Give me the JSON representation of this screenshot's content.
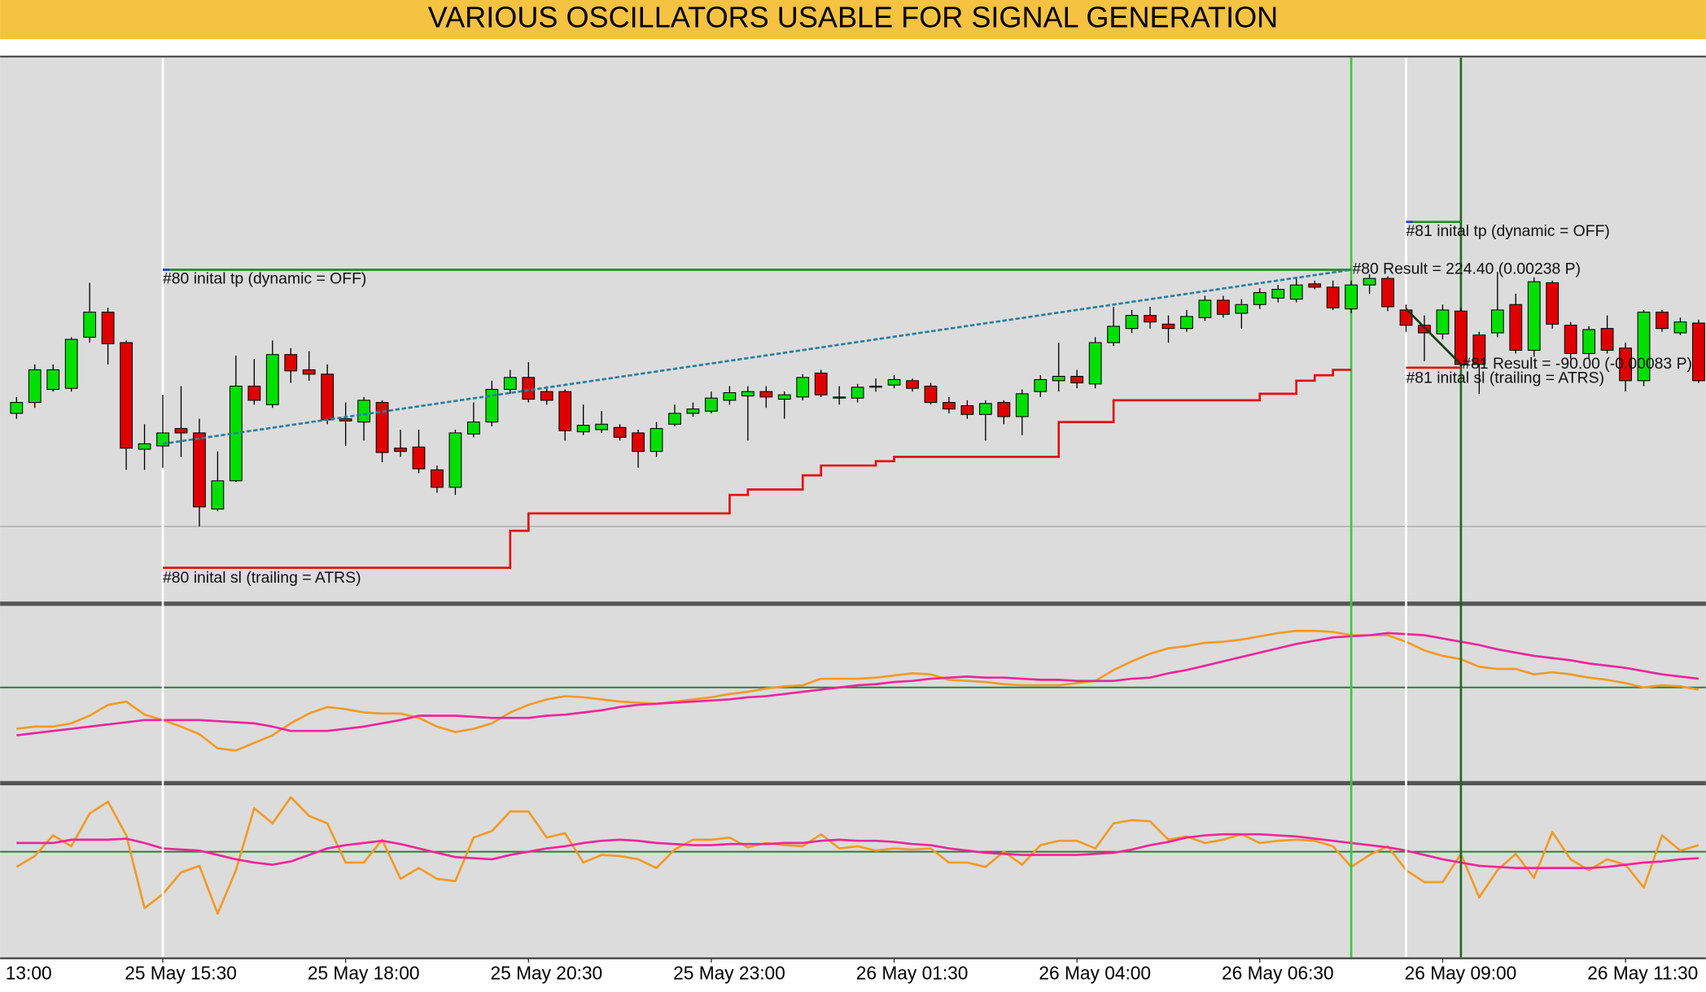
{
  "chart_data": {
    "type": "candlestick",
    "title": "VARIOUS OSCILLATORS USABLE FOR SIGNAL GENERATION",
    "xlim": [
      -0.9,
      92.4
    ],
    "xticks": [
      {
        "value": -2,
        "label": "13:00"
      },
      {
        "value": 8,
        "label": "25 May 15:30"
      },
      {
        "value": 18,
        "label": "25 May 18:00"
      },
      {
        "value": 28,
        "label": "25 May 20:30"
      },
      {
        "value": 38,
        "label": "25 May 23:00"
      },
      {
        "value": 48,
        "label": "26 May 01:30"
      },
      {
        "value": 58,
        "label": "26 May 04:00"
      },
      {
        "value": 68,
        "label": "26 May 06:30"
      },
      {
        "value": 78,
        "label": "26 May 09:00"
      },
      {
        "value": 88,
        "label": "26 May 11:30"
      }
    ],
    "ylim": [
      7,
      507
    ],
    "up_color": "#00e000",
    "down_color": "#e00000",
    "hlines": [
      76
    ],
    "open": [
      180,
      190,
      202,
      203,
      250,
      273,
      245,
      147,
      150,
      166,
      162,
      92,
      118,
      205,
      188,
      234,
      220,
      216,
      175,
      172,
      190,
      148,
      149,
      128,
      112,
      161,
      172,
      202,
      213,
      200,
      200,
      163,
      165,
      167,
      162,
      145,
      170,
      180,
      182,
      192,
      196,
      200,
      193,
      195,
      217,
      195,
      194,
      204,
      206,
      210,
      205,
      190,
      187,
      179,
      190,
      177,
      200,
      210,
      214,
      207,
      245,
      258,
      270,
      262,
      258,
      268,
      284,
      272,
      280,
      286,
      285,
      299,
      296,
      276,
      298,
      304,
      275,
      261,
      253,
      274,
      252,
      254,
      280,
      238,
      300,
      261,
      235,
      258,
      240,
      210,
      273,
      254,
      263
    ],
    "high": [
      195,
      225,
      225,
      250,
      300,
      277,
      247,
      170,
      197,
      205,
      175,
      145,
      233,
      230,
      247,
      240,
      237,
      225,
      190,
      195,
      192,
      165,
      165,
      132,
      165,
      190,
      210,
      220,
      227,
      205,
      202,
      188,
      182,
      170,
      165,
      172,
      188,
      190,
      200,
      205,
      205,
      205,
      200,
      216,
      220,
      205,
      207,
      212,
      215,
      212,
      208,
      195,
      192,
      192,
      192,
      202,
      215,
      245,
      220,
      250,
      278,
      275,
      278,
      270,
      275,
      288,
      288,
      285,
      295,
      298,
      305,
      302,
      302,
      302,
      308,
      306,
      280,
      270,
      280,
      277,
      255,
      310,
      290,
      305,
      302,
      264,
      260,
      270,
      245,
      275,
      275,
      268,
      266
    ],
    "low": [
      175,
      185,
      200,
      200,
      245,
      225,
      128,
      128,
      130,
      140,
      76,
      90,
      117,
      188,
      185,
      208,
      210,
      170,
      150,
      155,
      135,
      140,
      125,
      107,
      105,
      158,
      168,
      198,
      190,
      188,
      155,
      160,
      162,
      155,
      130,
      140,
      168,
      177,
      180,
      188,
      155,
      185,
      175,
      192,
      195,
      188,
      190,
      200,
      203,
      200,
      188,
      180,
      175,
      155,
      170,
      160,
      195,
      200,
      203,
      203,
      242,
      254,
      258,
      245,
      255,
      265,
      268,
      258,
      276,
      282,
      282,
      294,
      275,
      272,
      290,
      274,
      255,
      228,
      248,
      222,
      198,
      250,
      235,
      232,
      258,
      230,
      230,
      235,
      200,
      205,
      255,
      252,
      208
    ],
    "close": [
      190,
      220,
      220,
      248,
      273,
      244,
      148,
      152,
      162,
      162,
      94,
      118,
      205,
      192,
      234,
      219,
      216,
      174,
      173,
      192,
      144,
      145,
      129,
      112,
      162,
      172,
      202,
      213,
      193,
      192,
      164,
      169,
      170,
      158,
      145,
      166,
      180,
      184,
      194,
      199,
      200,
      195,
      197,
      213,
      197,
      194,
      204,
      205,
      211,
      203,
      190,
      184,
      179,
      189,
      177,
      198,
      211,
      214,
      208,
      245,
      260,
      270,
      264,
      258,
      269,
      284,
      271,
      280,
      291,
      294,
      298,
      296,
      277,
      298,
      304,
      278,
      261,
      254,
      275,
      225,
      225,
      275,
      238,
      301,
      262,
      235,
      257,
      238,
      210,
      273,
      258,
      264,
      210
    ],
    "trades": [
      {
        "entry_index": 8,
        "entry": 152,
        "exit_index": 73,
        "exit": 312,
        "tp": 312,
        "sl_path": [
          38,
          38,
          38,
          38,
          38,
          38,
          38,
          38,
          38,
          38,
          38,
          38,
          38,
          38,
          38,
          38,
          38,
          38,
          38,
          72,
          88,
          88,
          88,
          88,
          88,
          88,
          88,
          88,
          88,
          88,
          88,
          105,
          110,
          110,
          110,
          123,
          132,
          132,
          132,
          136,
          140,
          140,
          140,
          140,
          140,
          140,
          140,
          140,
          140,
          172,
          172,
          172,
          192,
          192,
          192,
          192,
          192,
          192,
          192,
          192,
          198,
          198,
          210,
          215,
          220,
          220
        ],
        "tp_label": "#80 inital tp (dynamic = OFF)",
        "sl_label": "#80 inital sl (trailing = ATRS)",
        "result_label": "#80 Result = 224.40 (0.00238 P)",
        "exit_color": "#3cc83c"
      },
      {
        "entry_index": 76,
        "entry": 276,
        "exit_index": 79,
        "exit": 225,
        "tp": 356,
        "sl_path": [
          222,
          222,
          222,
          222
        ],
        "tp_label": "#81 inital tp (dynamic = OFF)",
        "sl_label": "#81 inital sl (trailing = ATRS)",
        "result_label": "#81 Result = -90.00 (-0.00083 P)",
        "exit_color": "#1e6b1e"
      }
    ],
    "oscillators": [
      {
        "type": "line",
        "ylim": [
          -86,
          75
        ],
        "levels": [
          0
        ],
        "series": [
          {
            "color": "#f39a26",
            "values": [
              -38,
              -36,
              -36,
              -33,
              -26,
              -16,
              -13,
              -25,
              -30,
              -36,
              -43,
              -56,
              -58,
              -51,
              -44,
              -33,
              -24,
              -18,
              -20,
              -23,
              -24,
              -24,
              -28,
              -36,
              -41,
              -38,
              -33,
              -23,
              -16,
              -11,
              -8,
              -9,
              -11,
              -13,
              -14,
              -15,
              -13,
              -11,
              -9,
              -6,
              -4,
              -1,
              1,
              2,
              8,
              8,
              8,
              9,
              11,
              13,
              12,
              7,
              6,
              5,
              3,
              2,
              2,
              2,
              4,
              6,
              16,
              24,
              31,
              36,
              38,
              41,
              42,
              44,
              47,
              50,
              52,
              52,
              51,
              48,
              48,
              48,
              42,
              34,
              29,
              26,
              19,
              17,
              17,
              12,
              14,
              12,
              9,
              7,
              4,
              0,
              2,
              1,
              -2
            ]
          },
          {
            "color": "#f0259b",
            "values": [
              -44,
              -42,
              -40,
              -38,
              -36,
              -34,
              -32,
              -30,
              -30,
              -30,
              -30,
              -31,
              -32,
              -33,
              -36,
              -40,
              -40,
              -40,
              -38,
              -36,
              -33,
              -30,
              -26,
              -26,
              -26,
              -27,
              -28,
              -28,
              -28,
              -26,
              -25,
              -23,
              -21,
              -18,
              -16,
              -15,
              -14,
              -13,
              -12,
              -11,
              -9,
              -8,
              -6,
              -4,
              -2,
              0,
              2,
              3,
              5,
              6,
              8,
              9,
              10,
              9,
              9,
              8,
              7,
              7,
              6,
              6,
              6,
              8,
              9,
              13,
              16,
              20,
              24,
              28,
              32,
              36,
              40,
              43,
              46,
              47,
              48,
              50,
              49,
              48,
              45,
              42,
              39,
              35,
              32,
              29,
              27,
              25,
              22,
              20,
              18,
              15,
              12,
              10,
              8
            ]
          }
        ]
      },
      {
        "type": "line",
        "ylim": [
          -97,
          61
        ],
        "levels": [
          0
        ],
        "series": [
          {
            "color": "#f39a26",
            "values": [
              -14,
              -4,
              15,
              5,
              35,
              46,
              15,
              -52,
              -39,
              -19,
              -13,
              -57,
              -17,
              40,
              26,
              50,
              33,
              26,
              -10,
              -10,
              11,
              -25,
              -15,
              -25,
              -27,
              13,
              19,
              37,
              37,
              13,
              17,
              -10,
              -3,
              -4,
              -7,
              -15,
              2,
              11,
              11,
              13,
              4,
              8,
              6,
              5,
              16,
              3,
              5,
              1,
              3,
              2,
              3,
              -10,
              -10,
              -14,
              0,
              -12,
              6,
              10,
              10,
              3,
              26,
              29,
              28,
              11,
              14,
              8,
              11,
              16,
              8,
              10,
              11,
              10,
              5,
              -14,
              -3,
              5,
              -17,
              -28,
              -28,
              -2,
              -42,
              -17,
              -2,
              -24,
              18,
              -7,
              -17,
              -7,
              -12,
              -33,
              15,
              1,
              6
            ]
          },
          {
            "color": "#f0259b",
            "values": [
              8,
              8,
              8,
              11,
              11,
              11,
              12,
              8,
              3,
              2,
              1,
              -3,
              -7,
              -10,
              -12,
              -9,
              -3,
              3,
              6,
              8,
              10,
              7,
              3,
              -1,
              -5,
              -6,
              -7,
              -3,
              0,
              3,
              5,
              8,
              10,
              11,
              10,
              8,
              7,
              6,
              6,
              7,
              7,
              7,
              8,
              8,
              10,
              11,
              10,
              10,
              9,
              7,
              6,
              3,
              1,
              -1,
              -2,
              -3,
              -3,
              -3,
              -3,
              -2,
              -1,
              2,
              6,
              9,
              13,
              15,
              16,
              16,
              16,
              15,
              14,
              12,
              10,
              8,
              6,
              4,
              1,
              -3,
              -7,
              -10,
              -13,
              -14,
              -15,
              -15,
              -15,
              -15,
              -15,
              -14,
              -12,
              -10,
              -9,
              -7,
              -6
            ]
          }
        ]
      }
    ]
  }
}
